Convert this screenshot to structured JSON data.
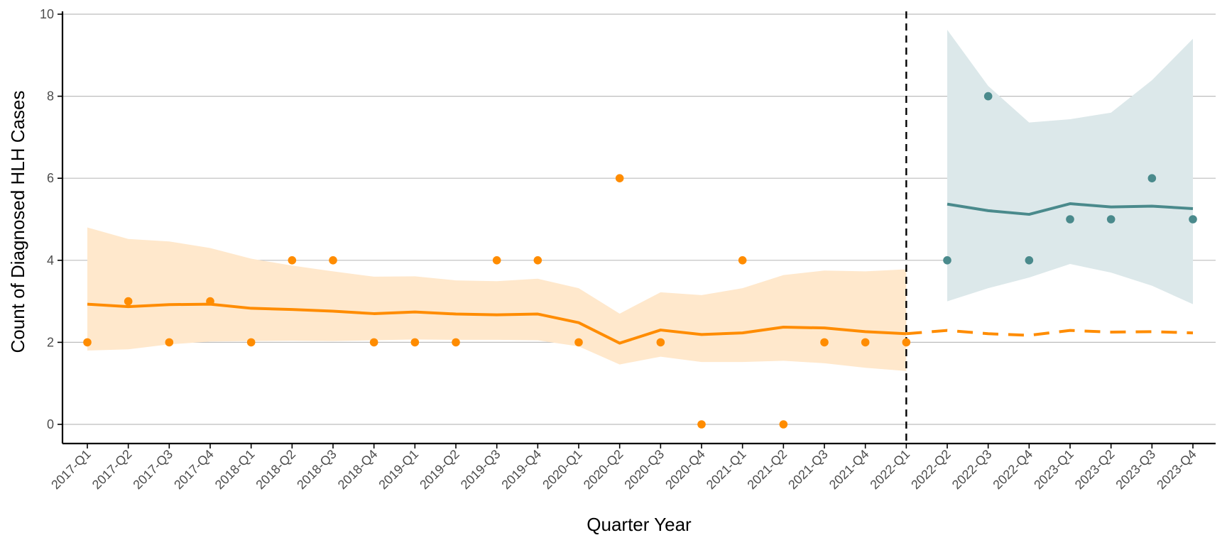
{
  "chart_data": {
    "type": "line",
    "title": "",
    "xlabel": "Quarter Year",
    "ylabel": "Count of Diagnosed HLH Cases",
    "ylim": [
      0,
      10
    ],
    "yticks": [
      0,
      2,
      4,
      6,
      8,
      10
    ],
    "grid": "horizontal",
    "legend": "none",
    "categories": [
      "2017-Q1",
      "2017-Q2",
      "2017-Q3",
      "2017-Q4",
      "2018-Q1",
      "2018-Q2",
      "2018-Q3",
      "2018-Q4",
      "2019-Q1",
      "2019-Q2",
      "2019-Q3",
      "2019-Q4",
      "2020-Q1",
      "2020-Q2",
      "2020-Q3",
      "2020-Q4",
      "2021-Q1",
      "2021-Q2",
      "2021-Q3",
      "2021-Q4",
      "2022-Q1",
      "2022-Q2",
      "2022-Q3",
      "2022-Q4",
      "2023-Q1",
      "2023-Q2",
      "2023-Q3",
      "2023-Q4"
    ],
    "reference_line_at": "2022-Q1",
    "colors": {
      "pre": "#ff8c00",
      "pre_band": "#ffe8cc",
      "post": "#4a8a8c",
      "post_band": "#dce8ea"
    },
    "series": [
      {
        "role": "pre_period",
        "start": "2017-Q1",
        "observed": [
          2,
          3,
          2,
          3,
          2,
          4,
          4,
          2,
          2,
          2,
          4,
          4,
          2,
          6,
          2,
          0,
          4,
          0,
          2,
          2,
          2
        ],
        "fitted": [
          2.93,
          2.87,
          2.92,
          2.93,
          2.83,
          2.8,
          2.76,
          2.7,
          2.74,
          2.69,
          2.67,
          2.69,
          2.48,
          1.98,
          2.3,
          2.19,
          2.23,
          2.37,
          2.35,
          2.26,
          2.21
        ],
        "lower": [
          1.8,
          1.83,
          1.95,
          2.02,
          2.03,
          2.04,
          2.03,
          2.05,
          2.07,
          2.06,
          2.06,
          2.05,
          1.9,
          1.46,
          1.65,
          1.52,
          1.52,
          1.55,
          1.49,
          1.38,
          1.3
        ],
        "upper": [
          4.8,
          4.52,
          4.46,
          4.3,
          4.04,
          3.87,
          3.73,
          3.6,
          3.61,
          3.51,
          3.49,
          3.55,
          3.32,
          2.7,
          3.22,
          3.15,
          3.32,
          3.64,
          3.75,
          3.73,
          3.78
        ]
      },
      {
        "role": "counterfactual",
        "start": "2022-Q1",
        "fitted": [
          2.21,
          2.29,
          2.21,
          2.17,
          2.29,
          2.25,
          2.26,
          2.23
        ]
      },
      {
        "role": "post_period",
        "start": "2022-Q2",
        "observed": [
          4,
          8,
          4,
          5,
          5,
          6,
          5
        ],
        "fitted": [
          5.37,
          5.21,
          5.12,
          5.38,
          5.3,
          5.32,
          5.26
        ],
        "lower": [
          3.0,
          3.32,
          3.58,
          3.91,
          3.7,
          3.38,
          2.93
        ],
        "upper": [
          9.62,
          8.25,
          7.36,
          7.44,
          7.6,
          8.39,
          9.4
        ]
      }
    ]
  }
}
